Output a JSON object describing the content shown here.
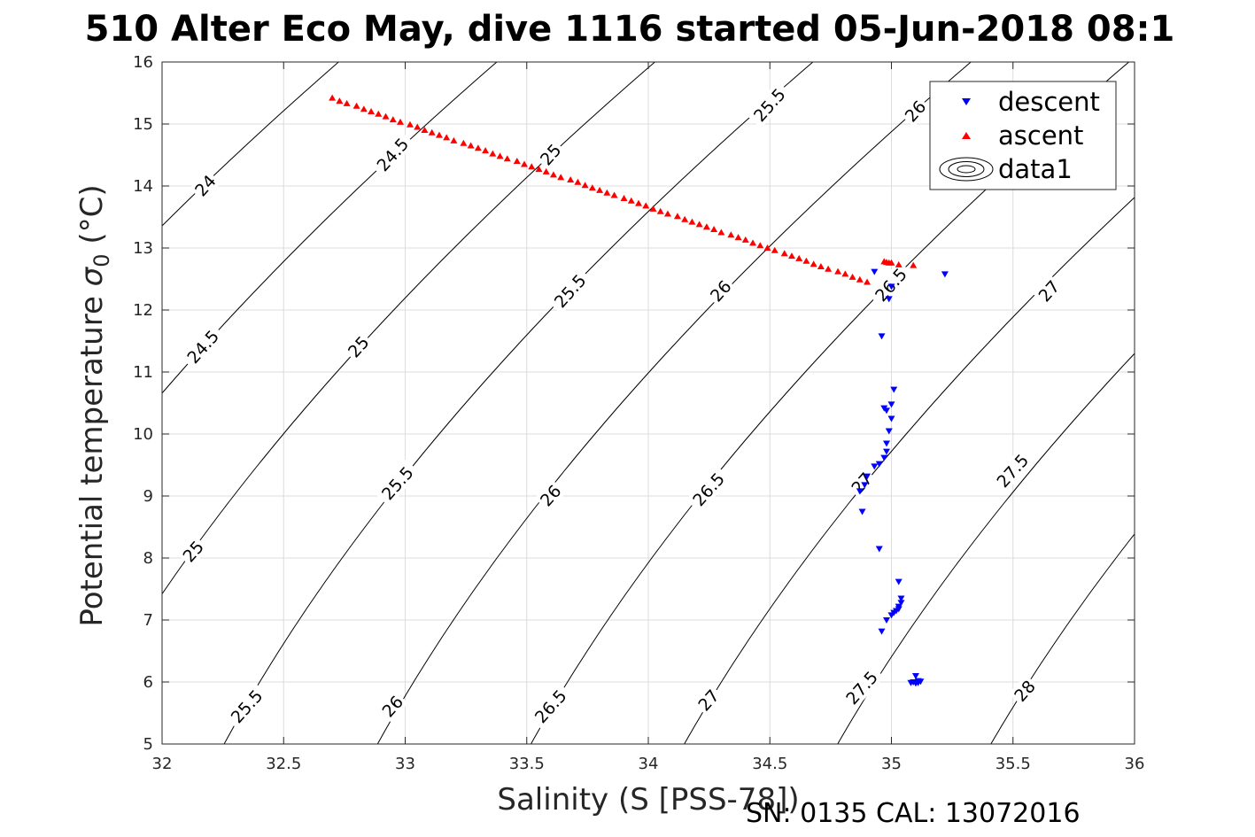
{
  "chart_data": {
    "type": "scatter",
    "title": "510 Alter Eco May, dive 1116 started 05-Jun-2018 08:1",
    "xlabel": "Salinity (S [PSS-78])",
    "ylabel_main": "Potential temperature ",
    "ylabel_sigma": "σ",
    "ylabel_sub": "0",
    "ylabel_unit": " (°C)",
    "footer": "SN: 0135  CAL: 13072016",
    "xlim": [
      32,
      36
    ],
    "ylim": [
      5,
      16
    ],
    "x_ticks": [
      32,
      32.5,
      33,
      33.5,
      34,
      34.5,
      35,
      35.5,
      36
    ],
    "x_tick_labels": [
      "32",
      "32.5",
      "33",
      "33.5",
      "34",
      "34.5",
      "35",
      "35.5",
      "36"
    ],
    "y_ticks": [
      5,
      6,
      7,
      8,
      9,
      10,
      11,
      12,
      13,
      14,
      15,
      16
    ],
    "y_tick_labels": [
      "5",
      "6",
      "7",
      "8",
      "9",
      "10",
      "11",
      "12",
      "13",
      "14",
      "15",
      "16"
    ],
    "grid": true,
    "legend_position": "top-right",
    "legend": [
      {
        "label": "descent",
        "marker": "triangle-down",
        "color": "#0000ff"
      },
      {
        "label": "ascent",
        "marker": "triangle-up",
        "color": "#ff0000"
      },
      {
        "label": "data1",
        "marker": "contour",
        "color": "#000000"
      }
    ],
    "contour_levels": [
      24,
      24.5,
      25,
      25.5,
      26,
      26.5,
      27,
      27.5,
      28
    ],
    "contour_labels": [
      {
        "text": "24",
        "s": 32.18,
        "t": 14.0
      },
      {
        "text": "24.5",
        "s": 32.17,
        "t": 11.4
      },
      {
        "text": "25",
        "s": 32.13,
        "t": 8.1
      },
      {
        "text": "25.5",
        "s": 32.35,
        "t": 5.6
      },
      {
        "text": "25",
        "s": 32.81,
        "t": 11.4
      },
      {
        "text": "24.5",
        "s": 32.95,
        "t": 14.5
      },
      {
        "text": "25.5",
        "s": 32.97,
        "t": 9.2
      },
      {
        "text": "26",
        "s": 32.95,
        "t": 5.6
      },
      {
        "text": "25",
        "s": 33.6,
        "t": 14.5
      },
      {
        "text": "25.5",
        "s": 33.68,
        "t": 12.3
      },
      {
        "text": "26",
        "s": 33.6,
        "t": 9.0
      },
      {
        "text": "26.5",
        "s": 33.6,
        "t": 5.6
      },
      {
        "text": "25.5",
        "s": 34.5,
        "t": 15.3
      },
      {
        "text": "26",
        "s": 34.3,
        "t": 12.3
      },
      {
        "text": "26.5",
        "s": 34.25,
        "t": 9.1
      },
      {
        "text": "27",
        "s": 34.25,
        "t": 5.7
      },
      {
        "text": "26",
        "s": 35.1,
        "t": 15.2
      },
      {
        "text": "26.5",
        "s": 35.0,
        "t": 12.4
      },
      {
        "text": "27",
        "s": 34.88,
        "t": 9.2
      },
      {
        "text": "27.5",
        "s": 34.88,
        "t": 5.9
      },
      {
        "text": "27",
        "s": 35.65,
        "t": 12.3
      },
      {
        "text": "27.5",
        "s": 35.5,
        "t": 9.4
      },
      {
        "text": "28",
        "s": 35.55,
        "t": 5.85
      }
    ],
    "series": [
      {
        "name": "descent",
        "marker": "triangle-down",
        "color": "#0000ff",
        "points": [
          [
            34.93,
            12.62
          ],
          [
            35.22,
            12.58
          ],
          [
            35.0,
            12.38
          ],
          [
            34.99,
            12.18
          ],
          [
            34.96,
            11.58
          ],
          [
            35.01,
            10.72
          ],
          [
            35.0,
            10.48
          ],
          [
            34.97,
            10.42
          ],
          [
            34.98,
            10.38
          ],
          [
            35.0,
            10.25
          ],
          [
            34.99,
            10.05
          ],
          [
            34.98,
            9.85
          ],
          [
            34.98,
            9.72
          ],
          [
            34.97,
            9.62
          ],
          [
            34.95,
            9.52
          ],
          [
            34.93,
            9.48
          ],
          [
            34.9,
            9.32
          ],
          [
            34.89,
            9.18
          ],
          [
            34.87,
            9.08
          ],
          [
            34.88,
            8.75
          ],
          [
            34.95,
            8.15
          ],
          [
            35.03,
            7.62
          ],
          [
            35.04,
            7.35
          ],
          [
            35.04,
            7.28
          ],
          [
            35.03,
            7.22
          ],
          [
            35.03,
            7.18
          ],
          [
            35.02,
            7.15
          ],
          [
            35.01,
            7.12
          ],
          [
            35.0,
            7.08
          ],
          [
            34.98,
            7.0
          ],
          [
            34.96,
            6.82
          ],
          [
            35.1,
            6.1
          ],
          [
            35.11,
            6.02
          ],
          [
            35.09,
            6.0
          ],
          [
            35.08,
            5.99
          ],
          [
            35.1,
            5.98
          ],
          [
            35.11,
            5.99
          ],
          [
            35.12,
            6.01
          ]
        ]
      },
      {
        "name": "ascent",
        "marker": "triangle-up",
        "color": "#ff0000",
        "points": [
          [
            32.7,
            15.42
          ],
          [
            32.73,
            15.37
          ],
          [
            32.76,
            15.33
          ],
          [
            32.8,
            15.29
          ],
          [
            32.83,
            15.24
          ],
          [
            32.86,
            15.2
          ],
          [
            32.89,
            15.16
          ],
          [
            32.92,
            15.12
          ],
          [
            32.95,
            15.07
          ],
          [
            32.98,
            15.03
          ],
          [
            33.02,
            14.99
          ],
          [
            33.05,
            14.95
          ],
          [
            33.08,
            14.9
          ],
          [
            33.11,
            14.86
          ],
          [
            33.14,
            14.82
          ],
          [
            33.17,
            14.78
          ],
          [
            33.2,
            14.73
          ],
          [
            33.24,
            14.69
          ],
          [
            33.27,
            14.65
          ],
          [
            33.3,
            14.61
          ],
          [
            33.33,
            14.57
          ],
          [
            33.36,
            14.52
          ],
          [
            33.39,
            14.48
          ],
          [
            33.42,
            14.44
          ],
          [
            33.46,
            14.4
          ],
          [
            33.49,
            14.35
          ],
          [
            33.52,
            14.31
          ],
          [
            33.55,
            14.27
          ],
          [
            33.58,
            14.23
          ],
          [
            33.61,
            14.18
          ],
          [
            33.64,
            14.14
          ],
          [
            33.68,
            14.1
          ],
          [
            33.71,
            14.06
          ],
          [
            33.74,
            14.01
          ],
          [
            33.77,
            13.97
          ],
          [
            33.8,
            13.93
          ],
          [
            33.83,
            13.89
          ],
          [
            33.86,
            13.85
          ],
          [
            33.9,
            13.8
          ],
          [
            33.93,
            13.76
          ],
          [
            33.96,
            13.72
          ],
          [
            33.99,
            13.68
          ],
          [
            34.02,
            13.63
          ],
          [
            34.05,
            13.59
          ],
          [
            34.08,
            13.55
          ],
          [
            34.12,
            13.51
          ],
          [
            34.15,
            13.46
          ],
          [
            34.18,
            13.42
          ],
          [
            34.21,
            13.38
          ],
          [
            34.24,
            13.34
          ],
          [
            34.27,
            13.3
          ],
          [
            34.3,
            13.25
          ],
          [
            34.34,
            13.21
          ],
          [
            34.37,
            13.17
          ],
          [
            34.4,
            13.13
          ],
          [
            34.43,
            13.08
          ],
          [
            34.46,
            13.04
          ],
          [
            34.49,
            13.0
          ],
          [
            34.52,
            12.96
          ],
          [
            34.56,
            12.91
          ],
          [
            34.59,
            12.87
          ],
          [
            34.62,
            12.83
          ],
          [
            34.65,
            12.79
          ],
          [
            34.68,
            12.74
          ],
          [
            34.71,
            12.7
          ],
          [
            34.74,
            12.66
          ],
          [
            34.78,
            12.62
          ],
          [
            34.81,
            12.58
          ],
          [
            34.84,
            12.53
          ],
          [
            34.87,
            12.49
          ],
          [
            34.9,
            12.45
          ],
          [
            34.97,
            12.78
          ],
          [
            34.98,
            12.77
          ],
          [
            34.99,
            12.76
          ],
          [
            35.0,
            12.76
          ],
          [
            35.03,
            12.73
          ],
          [
            35.09,
            12.72
          ]
        ]
      }
    ]
  }
}
